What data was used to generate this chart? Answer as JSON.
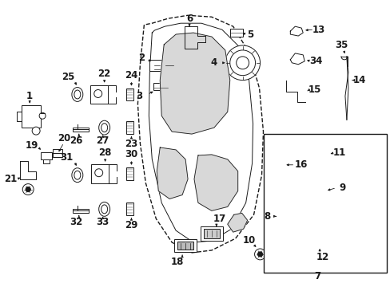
{
  "bg_color": "#ffffff",
  "line_color": "#1a1a1a",
  "fig_width": 4.89,
  "fig_height": 3.6,
  "dpi": 100,
  "label_fontsize": 8.5,
  "arrow_lw": 0.6,
  "part_lw": 0.7
}
